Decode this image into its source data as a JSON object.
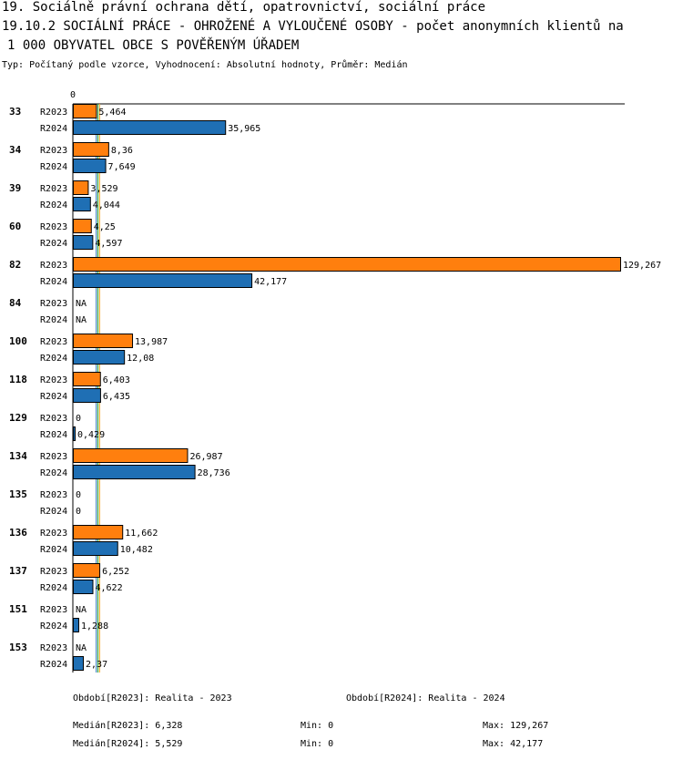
{
  "header": {
    "line1": "19. Sociálně právní ochrana dětí, opatrovnictví, sociální práce",
    "line2": "19.10.2 SOCIÁLNÍ PRÁCE - OHROŽENÉ A VYLOUČENÉ OSOBY - počet anonymních klientů na",
    "line3": "1 000 OBYVATEL OBCE S POVĚŘENÝM ÚŘADEM",
    "subtitle": "Typ: Počítaný podle vzorce, Vyhodnocení: Absolutní hodnoty, Průměr: Medián"
  },
  "colors": {
    "R2023": "#ff7f0e",
    "R2024": "#1f6fb4",
    "median2023": "#f5a623",
    "median2024": "#1f6fb4",
    "median_mid": "#2ca02c"
  },
  "chart_data": {
    "type": "bar",
    "orientation": "horizontal",
    "axis_zero_label": "0",
    "xlim": [
      0,
      129.267
    ],
    "categories": [
      "33",
      "34",
      "39",
      "60",
      "82",
      "84",
      "100",
      "118",
      "129",
      "134",
      "135",
      "136",
      "137",
      "151",
      "153"
    ],
    "series": [
      {
        "name": "R2023",
        "values": [
          5.464,
          8.36,
          3.529,
          4.25,
          129.267,
          null,
          13.987,
          6.403,
          0,
          26.987,
          0,
          11.662,
          6.252,
          null,
          null
        ],
        "labels": [
          "5,464",
          "8,36",
          "3,529",
          "4,25",
          "129,267",
          "NA",
          "13,987",
          "6,403",
          "0",
          "26,987",
          "0",
          "11,662",
          "6,252",
          "NA",
          "NA"
        ]
      },
      {
        "name": "R2024",
        "values": [
          35.965,
          7.649,
          4.044,
          4.597,
          42.177,
          null,
          12.08,
          6.435,
          0.429,
          28.736,
          0,
          10.482,
          4.622,
          1.288,
          2.37
        ],
        "labels": [
          "35,965",
          "7,649",
          "4,044",
          "4,597",
          "42,177",
          "NA",
          "12,08",
          "6,435",
          "0,429",
          "28,736",
          "0",
          "10,482",
          "4,622",
          "1,288",
          "2,37"
        ]
      }
    ],
    "medians": {
      "R2023": 6.328,
      "R2024": 5.529
    }
  },
  "footer": {
    "period2023": "Období[R2023]: Realita - 2023",
    "period2024": "Období[R2024]: Realita - 2024",
    "median2023": "Medián[R2023]: 6,328",
    "min2023": "Min: 0",
    "max2023": "Max: 129,267",
    "median2024": "Medián[R2024]: 5,529",
    "min2024": "Min: 0",
    "max2024": "Max: 42,177"
  }
}
